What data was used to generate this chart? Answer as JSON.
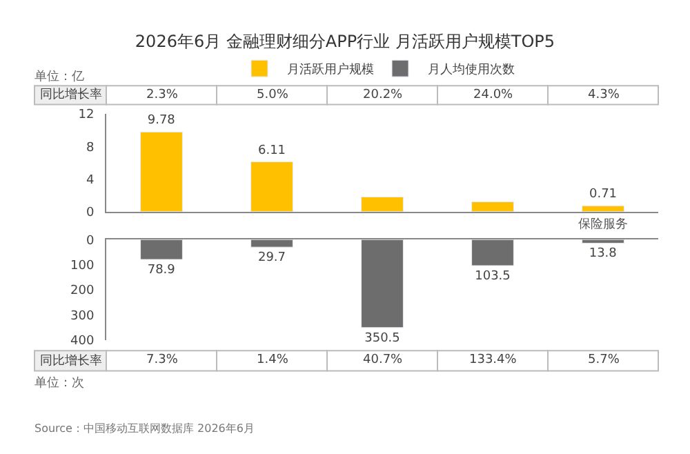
{
  "chart_data": [
    {
      "type": "bar",
      "title": "2026年6月 金融理财细分APP行业 月活跃用户规模TOP5",
      "categories": [
        null,
        null,
        null,
        null,
        "保险服务"
      ],
      "series": [
        {
          "name": "月活跃用户规模",
          "color": "#ffc000",
          "values": [
            9.78,
            6.11,
            1.8,
            1.2,
            0.71
          ],
          "value_labels": [
            "9.78",
            "6.11",
            null,
            null,
            "0.71"
          ]
        }
      ],
      "ylabel": "单位：亿",
      "ylim": [
        0,
        12
      ],
      "yticks": [
        0,
        4,
        8,
        12
      ],
      "annotations": [
        "同比增长率",
        "2.3%",
        "5.0%",
        "20.2%",
        "24.0%",
        "4.3%"
      ],
      "legend": "top"
    },
    {
      "type": "bar",
      "categories": [
        null,
        null,
        null,
        null,
        null
      ],
      "tick_labels": "y",
      "series": [
        {
          "name": "月人均使用次数",
          "color": "#6d6d6d",
          "values": [
            78.9,
            29.7,
            350.5,
            103.5,
            13.8
          ],
          "value_labels": [
            "78.9",
            "29.7",
            "350.5",
            "103.5",
            "13.8"
          ]
        }
      ],
      "ylabel": "单位：次",
      "ylim": [
        400,
        0
      ],
      "yticks": [
        0,
        100,
        200,
        300,
        400
      ],
      "annotations": [
        "同比增长率",
        "7.3%",
        "1.4%",
        "40.7%",
        "133.4%",
        "5.7%",
        "Source：中国移动互联网数据库 2026年6月"
      ],
      "legend": "top"
    }
  ]
}
